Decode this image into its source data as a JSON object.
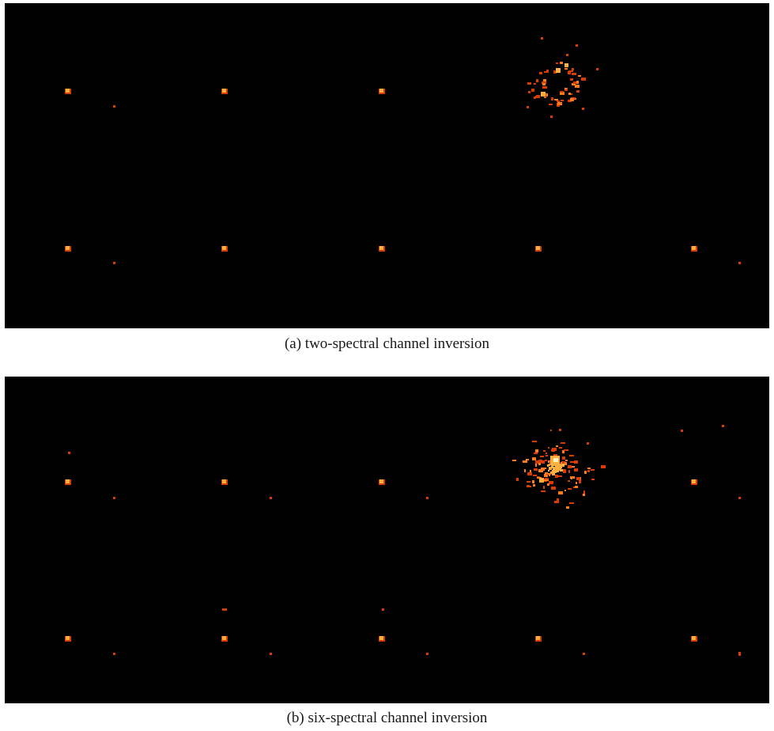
{
  "figure": {
    "colors": {
      "background": "#000000",
      "spot_core": "#ffb040",
      "spot_mid": "#ff7a18",
      "spot_edge": "#d83c00",
      "highlight": "#fff2c0"
    },
    "panels": [
      {
        "id": "a",
        "caption": "(a) two-spectral channel inversion"
      },
      {
        "id": "b",
        "caption": "(b) six-spectral channel inversion"
      }
    ]
  }
}
